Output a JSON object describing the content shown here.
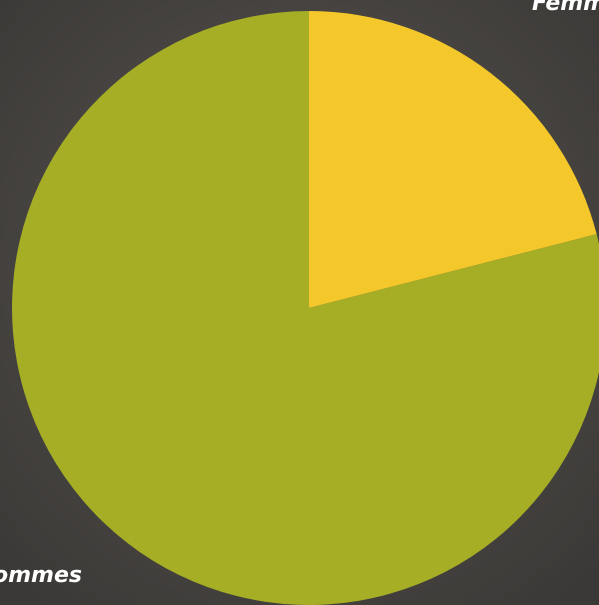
{
  "chart_data": {
    "type": "pie",
    "categories": [
      "Femmes",
      "Hommes"
    ],
    "values": [
      21,
      79
    ],
    "colors": [
      "#f4c82a",
      "#a6ae26"
    ],
    "start_angle": 0,
    "direction": "clockwise"
  }
}
